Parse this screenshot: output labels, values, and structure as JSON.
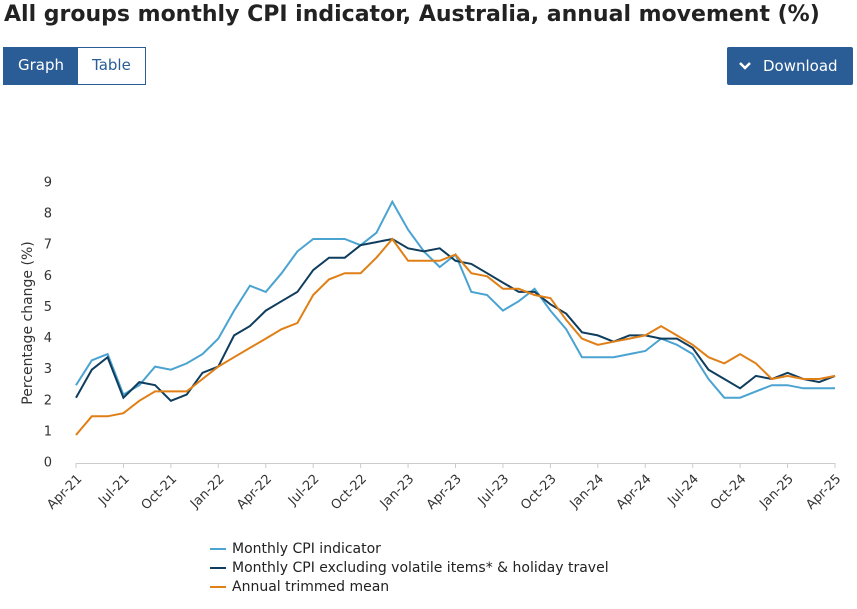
{
  "controls": {
    "graph": "Graph",
    "table": "Table",
    "download": "Download"
  },
  "chart_data": {
    "type": "line",
    "title": "All groups monthly CPI indicator, Australia, annual movement (%)",
    "y_label": "Percentage change (%)",
    "categories": [
      "Apr-21",
      null,
      null,
      "Jul-21",
      null,
      null,
      "Oct-21",
      null,
      null,
      "Jan-22",
      null,
      null,
      "Apr-22",
      null,
      null,
      "Jul-22",
      null,
      null,
      "Oct-22",
      null,
      null,
      "Jan-23",
      null,
      null,
      "Apr-23",
      null,
      null,
      "Jul-23",
      null,
      null,
      "Oct-23",
      null,
      null,
      "Jan-24",
      null,
      null,
      "Apr-24",
      null,
      null,
      "Jul-24",
      null,
      null,
      "Oct-24",
      null,
      null,
      "Jan-25",
      null,
      null,
      "Apr-25"
    ],
    "ylim": [
      0,
      9
    ],
    "yticks": [
      0,
      1,
      2,
      3,
      4,
      5,
      6,
      7,
      8,
      9
    ],
    "grid": false,
    "series": [
      {
        "name": "Monthly CPI indicator",
        "color": "#4aa3d1",
        "values": [
          2.5,
          3.3,
          3.5,
          2.2,
          2.5,
          3.1,
          3.0,
          3.2,
          3.5,
          4.0,
          4.9,
          5.7,
          5.5,
          6.1,
          6.8,
          7.2,
          7.2,
          7.2,
          7.0,
          7.4,
          8.4,
          7.5,
          6.8,
          6.3,
          6.7,
          5.5,
          5.4,
          4.9,
          5.2,
          5.6,
          4.9,
          4.3,
          3.4,
          3.4,
          3.4,
          3.5,
          3.6,
          4.0,
          3.8,
          3.5,
          2.7,
          2.1,
          2.1,
          2.3,
          2.5,
          2.5,
          2.4,
          2.4,
          2.4
        ]
      },
      {
        "name": "Monthly CPI excluding volatile items* & holiday travel",
        "color": "#0f3d5e",
        "values": [
          2.1,
          3.0,
          3.4,
          2.1,
          2.6,
          2.5,
          2.0,
          2.2,
          2.9,
          3.1,
          4.1,
          4.4,
          4.9,
          5.2,
          5.5,
          6.2,
          6.6,
          6.6,
          7.0,
          7.1,
          7.2,
          6.9,
          6.8,
          6.9,
          6.5,
          6.4,
          6.1,
          5.8,
          5.5,
          5.5,
          5.1,
          4.8,
          4.2,
          4.1,
          3.9,
          4.1,
          4.1,
          4.0,
          4.0,
          3.7,
          3.0,
          2.7,
          2.4,
          2.8,
          2.7,
          2.9,
          2.7,
          2.6,
          2.8
        ]
      },
      {
        "name": "Annual trimmed mean",
        "color": "#e07f16",
        "values": [
          0.9,
          1.5,
          1.5,
          1.6,
          2.0,
          2.3,
          2.3,
          2.3,
          2.7,
          3.1,
          3.4,
          3.7,
          4.0,
          4.3,
          4.5,
          5.4,
          5.9,
          6.1,
          6.1,
          6.6,
          7.2,
          6.5,
          6.5,
          6.5,
          6.7,
          6.1,
          6.0,
          5.6,
          5.6,
          5.4,
          5.3,
          4.6,
          4.0,
          3.8,
          3.9,
          4.0,
          4.1,
          4.4,
          4.1,
          3.8,
          3.4,
          3.2,
          3.5,
          3.2,
          2.7,
          2.8,
          2.7,
          2.7,
          2.8
        ]
      }
    ]
  }
}
